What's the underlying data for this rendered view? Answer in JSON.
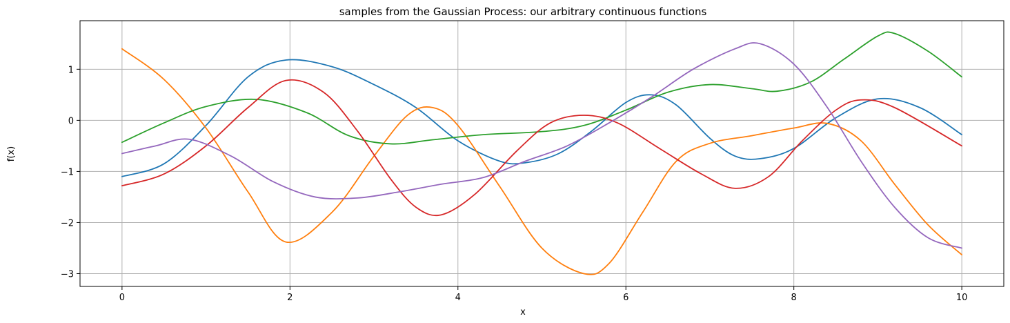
{
  "chart_data": {
    "type": "line",
    "title": "samples from the Gaussian Process: our arbitrary continuous functions",
    "xlabel": "x",
    "ylabel": "f(x)",
    "xlim": [
      -0.5,
      10.5
    ],
    "ylim": [
      -3.25,
      1.95
    ],
    "xticks": [
      0,
      2,
      4,
      6,
      8,
      10
    ],
    "yticks": [
      1,
      0,
      -1,
      -2,
      -3
    ],
    "xtick_labels": [
      "0",
      "2",
      "4",
      "6",
      "8",
      "10"
    ],
    "ytick_labels": [
      "1",
      "0",
      "−1",
      "−2",
      "−3"
    ],
    "grid": true,
    "series": [
      {
        "color": "#1f77b4",
        "points": [
          [
            0,
            -1.1
          ],
          [
            0.5,
            -0.85
          ],
          [
            1,
            -0.1
          ],
          [
            1.5,
            0.85
          ],
          [
            1.95,
            1.18
          ],
          [
            2.5,
            1.05
          ],
          [
            3,
            0.7
          ],
          [
            3.5,
            0.25
          ],
          [
            4,
            -0.4
          ],
          [
            4.5,
            -0.8
          ],
          [
            4.8,
            -0.83
          ],
          [
            5.2,
            -0.65
          ],
          [
            5.6,
            -0.2
          ],
          [
            6,
            0.35
          ],
          [
            6.3,
            0.5
          ],
          [
            6.6,
            0.3
          ],
          [
            7,
            -0.35
          ],
          [
            7.3,
            -0.7
          ],
          [
            7.6,
            -0.75
          ],
          [
            8,
            -0.55
          ],
          [
            8.5,
            0.05
          ],
          [
            9,
            0.42
          ],
          [
            9.5,
            0.25
          ],
          [
            10,
            -0.28
          ]
        ]
      },
      {
        "color": "#ff7f0e",
        "points": [
          [
            0,
            1.4
          ],
          [
            0.5,
            0.8
          ],
          [
            1,
            -0.15
          ],
          [
            1.5,
            -1.4
          ],
          [
            1.95,
            -2.38
          ],
          [
            2.5,
            -1.8
          ],
          [
            3,
            -0.7
          ],
          [
            3.4,
            0.1
          ],
          [
            3.7,
            0.25
          ],
          [
            4,
            -0.1
          ],
          [
            4.5,
            -1.3
          ],
          [
            5,
            -2.5
          ],
          [
            5.5,
            -3.0
          ],
          [
            5.8,
            -2.8
          ],
          [
            6.2,
            -1.8
          ],
          [
            6.6,
            -0.8
          ],
          [
            7,
            -0.45
          ],
          [
            7.5,
            -0.3
          ],
          [
            8,
            -0.15
          ],
          [
            8.4,
            -0.06
          ],
          [
            8.8,
            -0.4
          ],
          [
            9.2,
            -1.25
          ],
          [
            9.6,
            -2.05
          ],
          [
            10,
            -2.63
          ]
        ]
      },
      {
        "color": "#2ca02c",
        "points": [
          [
            0,
            -0.43
          ],
          [
            0.5,
            -0.05
          ],
          [
            1,
            0.27
          ],
          [
            1.6,
            0.41
          ],
          [
            2.2,
            0.15
          ],
          [
            2.7,
            -0.3
          ],
          [
            3.2,
            -0.46
          ],
          [
            3.7,
            -0.38
          ],
          [
            4.3,
            -0.28
          ],
          [
            5,
            -0.22
          ],
          [
            5.5,
            -0.1
          ],
          [
            6,
            0.2
          ],
          [
            6.5,
            0.55
          ],
          [
            7,
            0.7
          ],
          [
            7.5,
            0.62
          ],
          [
            7.8,
            0.57
          ],
          [
            8.2,
            0.75
          ],
          [
            8.6,
            1.2
          ],
          [
            9,
            1.65
          ],
          [
            9.2,
            1.7
          ],
          [
            9.6,
            1.35
          ],
          [
            10,
            0.85
          ]
        ]
      },
      {
        "color": "#d62728",
        "points": [
          [
            0,
            -1.28
          ],
          [
            0.5,
            -1.05
          ],
          [
            1,
            -0.5
          ],
          [
            1.5,
            0.25
          ],
          [
            1.95,
            0.78
          ],
          [
            2.4,
            0.55
          ],
          [
            2.8,
            -0.2
          ],
          [
            3.2,
            -1.15
          ],
          [
            3.5,
            -1.7
          ],
          [
            3.8,
            -1.85
          ],
          [
            4.2,
            -1.45
          ],
          [
            4.7,
            -0.6
          ],
          [
            5.1,
            -0.05
          ],
          [
            5.5,
            0.1
          ],
          [
            5.9,
            -0.05
          ],
          [
            6.4,
            -0.55
          ],
          [
            6.9,
            -1.05
          ],
          [
            7.3,
            -1.33
          ],
          [
            7.7,
            -1.1
          ],
          [
            8.1,
            -0.4
          ],
          [
            8.5,
            0.2
          ],
          [
            8.8,
            0.4
          ],
          [
            9.2,
            0.25
          ],
          [
            10,
            -0.5
          ]
        ]
      },
      {
        "color": "#9467bd",
        "points": [
          [
            0,
            -0.65
          ],
          [
            0.4,
            -0.5
          ],
          [
            0.8,
            -0.37
          ],
          [
            1.3,
            -0.7
          ],
          [
            1.8,
            -1.2
          ],
          [
            2.3,
            -1.5
          ],
          [
            2.8,
            -1.52
          ],
          [
            3.3,
            -1.4
          ],
          [
            3.8,
            -1.25
          ],
          [
            4.3,
            -1.12
          ],
          [
            4.8,
            -0.8
          ],
          [
            5.3,
            -0.5
          ],
          [
            5.8,
            -0.05
          ],
          [
            6.3,
            0.45
          ],
          [
            6.8,
            1.0
          ],
          [
            7.3,
            1.4
          ],
          [
            7.6,
            1.5
          ],
          [
            8,
            1.1
          ],
          [
            8.4,
            0.25
          ],
          [
            8.8,
            -0.8
          ],
          [
            9.2,
            -1.7
          ],
          [
            9.6,
            -2.3
          ],
          [
            10,
            -2.5
          ]
        ]
      }
    ]
  }
}
